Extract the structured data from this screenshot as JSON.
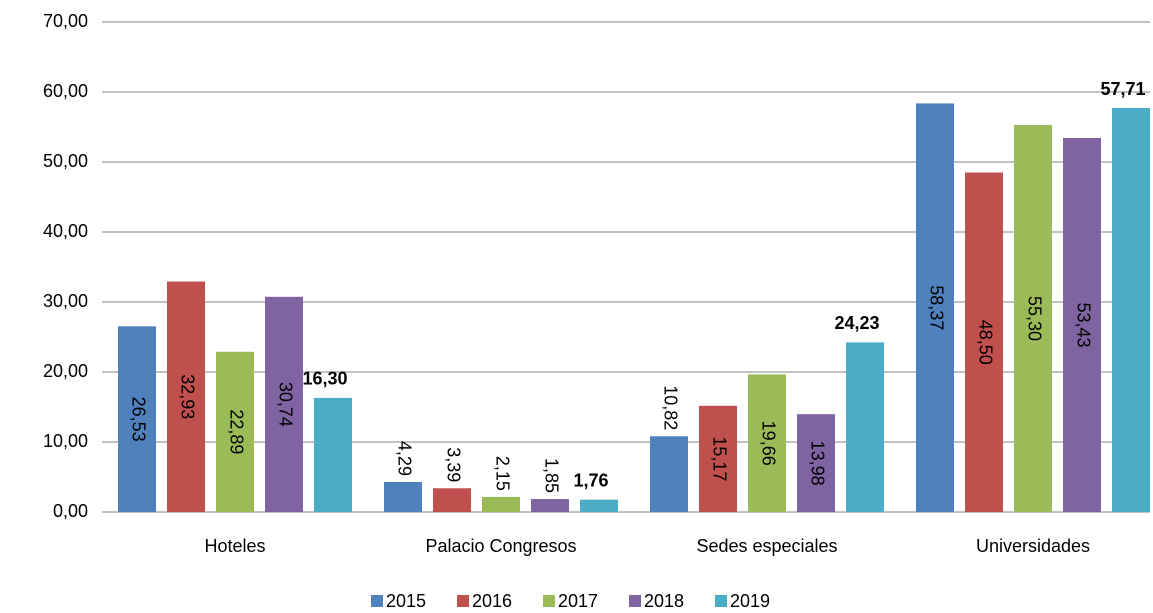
{
  "chart_data": {
    "type": "bar",
    "categories": [
      "Hoteles",
      "Palacio Congresos",
      "Sedes especiales",
      "Universidades"
    ],
    "series": [
      {
        "name": "2015",
        "color": "#4f81bd",
        "values": [
          26.53,
          4.29,
          10.82,
          58.37
        ],
        "value_labels": [
          "26,53",
          "4,29",
          "10,82",
          "58,37"
        ]
      },
      {
        "name": "2016",
        "color": "#c0504d",
        "values": [
          32.93,
          3.39,
          15.17,
          48.5
        ],
        "value_labels": [
          "32,93",
          "3,39",
          "15,17",
          "48,50"
        ]
      },
      {
        "name": "2017",
        "color": "#9bbb59",
        "values": [
          22.89,
          2.15,
          19.66,
          55.3
        ],
        "value_labels": [
          "22,89",
          "2,15",
          "19,66",
          "55,30"
        ]
      },
      {
        "name": "2018",
        "color": "#8064a2",
        "values": [
          30.74,
          1.85,
          13.98,
          53.43
        ],
        "value_labels": [
          "30,74",
          "1,85",
          "13,98",
          "53,43"
        ]
      },
      {
        "name": "2019",
        "color": "#4bacc6",
        "values": [
          16.3,
          1.76,
          24.23,
          57.71
        ],
        "value_labels": [
          "16,30",
          "1,76",
          "24,23",
          "57,71"
        ]
      }
    ],
    "ylim": [
      0,
      70
    ],
    "yticks": [
      {
        "value": 0,
        "label": "0,00"
      },
      {
        "value": 10,
        "label": "10,00"
      },
      {
        "value": 20,
        "label": "20,00"
      },
      {
        "value": 30,
        "label": "30,00"
      },
      {
        "value": 40,
        "label": "40,00"
      },
      {
        "value": 50,
        "label": "50,00"
      },
      {
        "value": 60,
        "label": "60,00"
      },
      {
        "value": 70,
        "label": "70,00"
      }
    ],
    "grid": true,
    "legend": "bottom"
  }
}
